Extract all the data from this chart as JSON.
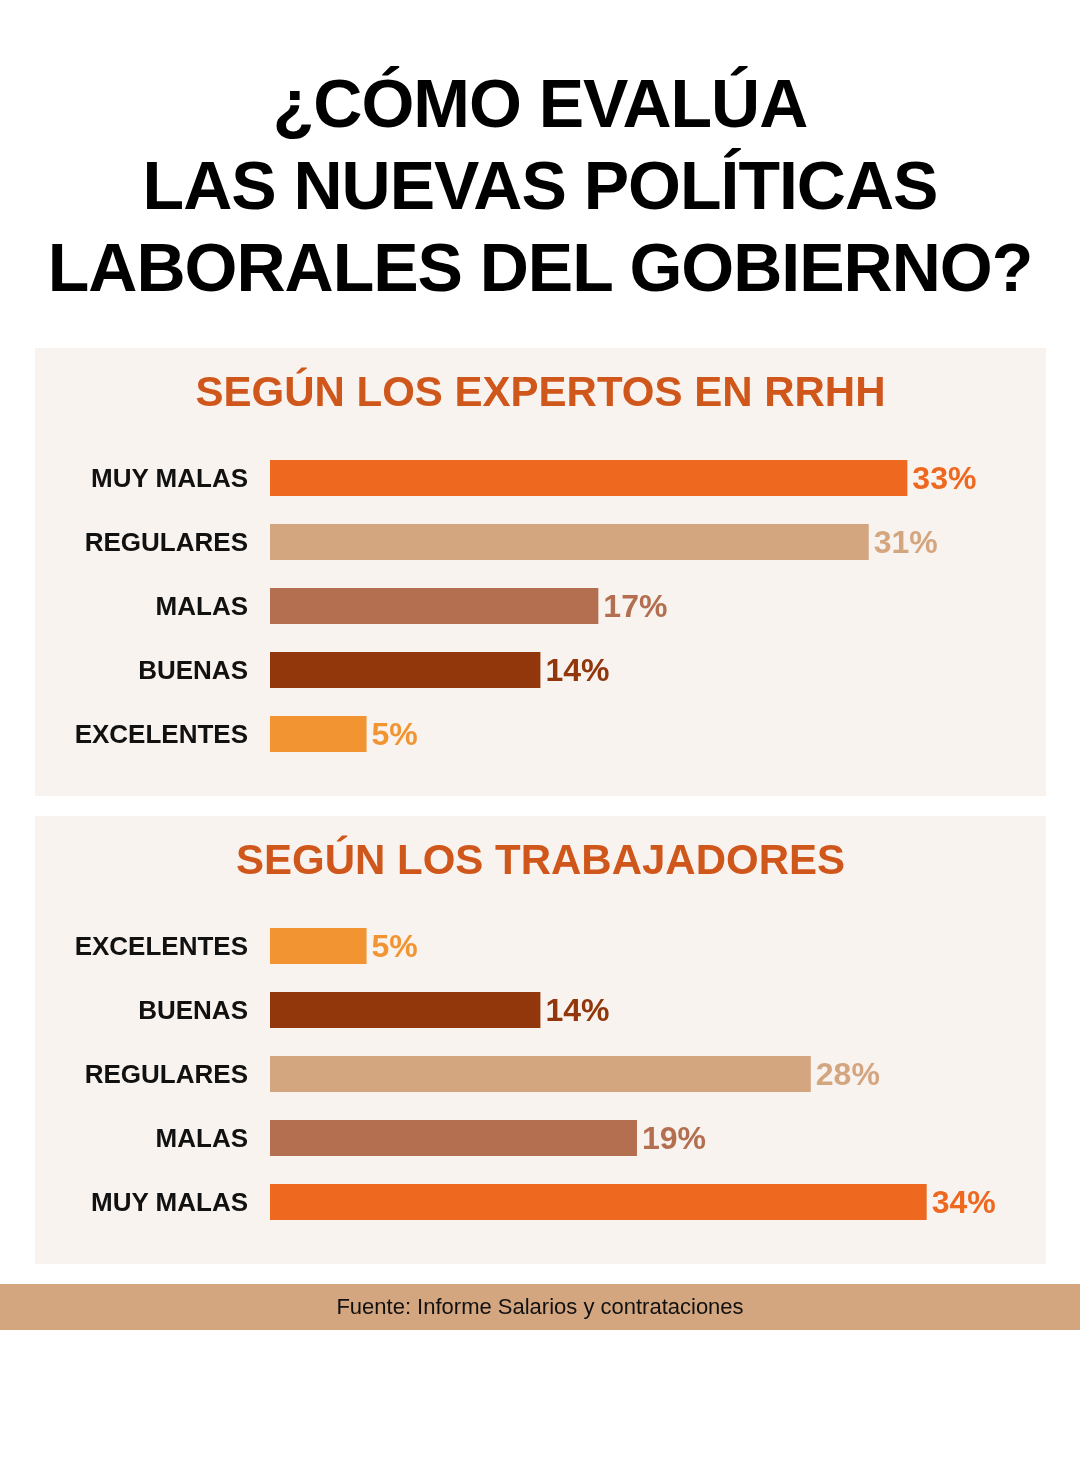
{
  "chart_data": [
    {
      "type": "bar",
      "orientation": "horizontal",
      "title": "¿CÓMO EVALÚA\nLAS NUEVAS POLÍTICAS\nLABORALES DEL GOBIERNO?",
      "subtitle": "SEGÚN LOS EXPERTOS EN RRHH",
      "categories": [
        "MUY MALAS",
        "REGULARES",
        "MALAS",
        "BUENAS",
        "EXCELENTES"
      ],
      "values": [
        33,
        31,
        17,
        14,
        5
      ],
      "colors": [
        "#ee6820",
        "#d4a680",
        "#b36f4f",
        "#92360b",
        "#f39433"
      ],
      "value_labels": [
        "33%",
        "31%",
        "17%",
        "14%",
        "5%"
      ]
    },
    {
      "type": "bar",
      "orientation": "horizontal",
      "subtitle": "SEGÚN LOS TRABAJADORES",
      "categories": [
        "EXCELENTES",
        "BUENAS",
        "REGULARES",
        "MALAS",
        "MUY MALAS"
      ],
      "values": [
        5,
        14,
        28,
        19,
        34
      ],
      "colors": [
        "#f39433",
        "#92360b",
        "#d4a680",
        "#b36f4f",
        "#ee6820"
      ],
      "value_labels": [
        "5%",
        "14%",
        "28%",
        "19%",
        "34%"
      ],
      "annotations": [
        "Fuente: Informe Salarios y contrataciones"
      ]
    }
  ]
}
